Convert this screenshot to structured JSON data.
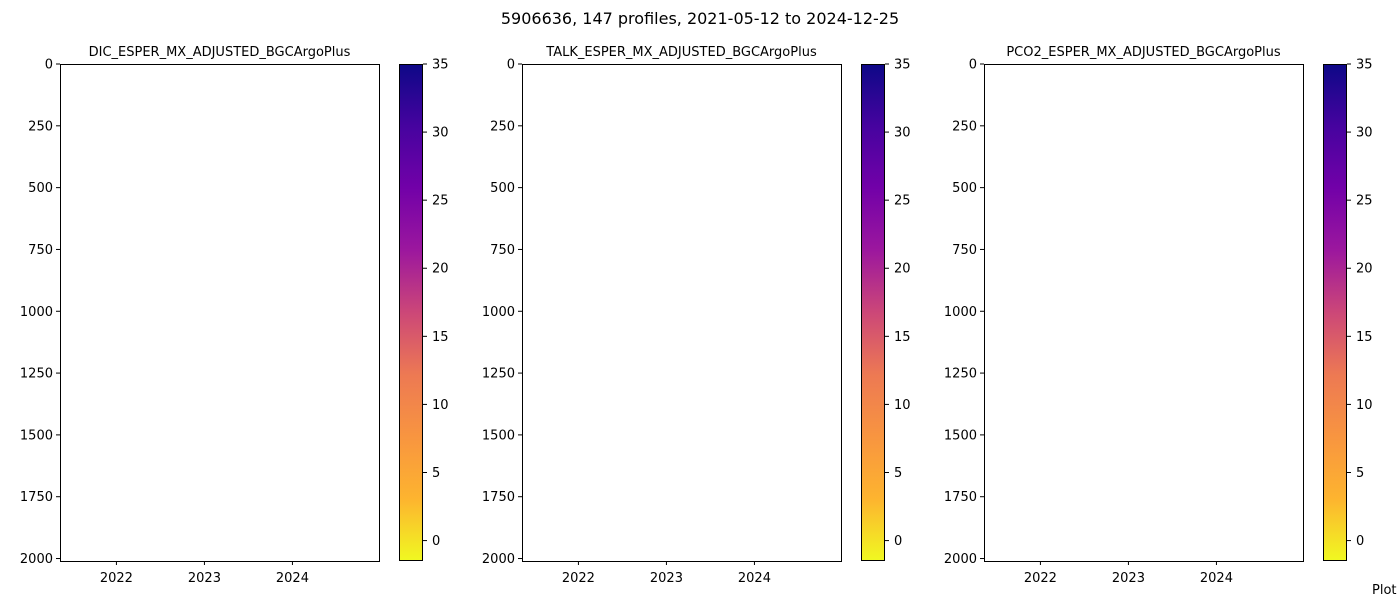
{
  "figure": {
    "suptitle": "5906636, 147 profiles, 2021-05-12 to 2024-12-25",
    "corner_text": "Plot"
  },
  "chart_data": [
    {
      "type": "heatmap",
      "title": "DIC_ESPER_MX_ADJUSTED_BGCArgoPlus",
      "xlabel": "",
      "ylabel": "",
      "x_ticks": [
        "2022",
        "2023",
        "2024"
      ],
      "x_tick_dates": [
        "2022-01-01",
        "2023-01-01",
        "2024-01-01"
      ],
      "xlim": [
        "2021-05-12",
        "2024-12-25"
      ],
      "y_ticks": [
        0,
        250,
        500,
        750,
        1000,
        1250,
        1500,
        1750,
        2000
      ],
      "ylim": [
        2010,
        0
      ],
      "y_inverted": true,
      "values": [],
      "colorbar": {
        "colormap": "plasma_r",
        "ticks": [
          0,
          5,
          10,
          15,
          20,
          25,
          30,
          35
        ],
        "range": [
          -1.5,
          35
        ]
      },
      "grid": false
    },
    {
      "type": "heatmap",
      "title": "TALK_ESPER_MX_ADJUSTED_BGCArgoPlus",
      "xlabel": "",
      "ylabel": "",
      "x_ticks": [
        "2022",
        "2023",
        "2024"
      ],
      "x_tick_dates": [
        "2022-01-01",
        "2023-01-01",
        "2024-01-01"
      ],
      "xlim": [
        "2021-05-12",
        "2024-12-25"
      ],
      "y_ticks": [
        0,
        250,
        500,
        750,
        1000,
        1250,
        1500,
        1750,
        2000
      ],
      "ylim": [
        2010,
        0
      ],
      "y_inverted": true,
      "values": [],
      "colorbar": {
        "colormap": "plasma_r",
        "ticks": [
          0,
          5,
          10,
          15,
          20,
          25,
          30,
          35
        ],
        "range": [
          -1.5,
          35
        ]
      },
      "grid": false
    },
    {
      "type": "heatmap",
      "title": "PCO2_ESPER_MX_ADJUSTED_BGCArgoPlus",
      "xlabel": "",
      "ylabel": "",
      "x_ticks": [
        "2022",
        "2023",
        "2024"
      ],
      "x_tick_dates": [
        "2022-01-01",
        "2023-01-01",
        "2024-01-01"
      ],
      "xlim": [
        "2021-05-12",
        "2024-12-25"
      ],
      "y_ticks": [
        0,
        250,
        500,
        750,
        1000,
        1250,
        1500,
        1750,
        2000
      ],
      "ylim": [
        2010,
        0
      ],
      "y_inverted": true,
      "values": [],
      "colorbar": {
        "colormap": "plasma_r",
        "ticks": [
          0,
          5,
          10,
          15,
          20,
          25,
          30,
          35
        ],
        "range": [
          -1.5,
          35
        ]
      },
      "grid": false
    }
  ],
  "colors": {
    "colormap_stops": [
      "#f0f921",
      "#fdb42f",
      "#f89540",
      "#ed7953",
      "#cc4778",
      "#9c179e",
      "#7201a8",
      "#46039f",
      "#0d0887"
    ],
    "axis": "#000000",
    "background": "#ffffff"
  }
}
